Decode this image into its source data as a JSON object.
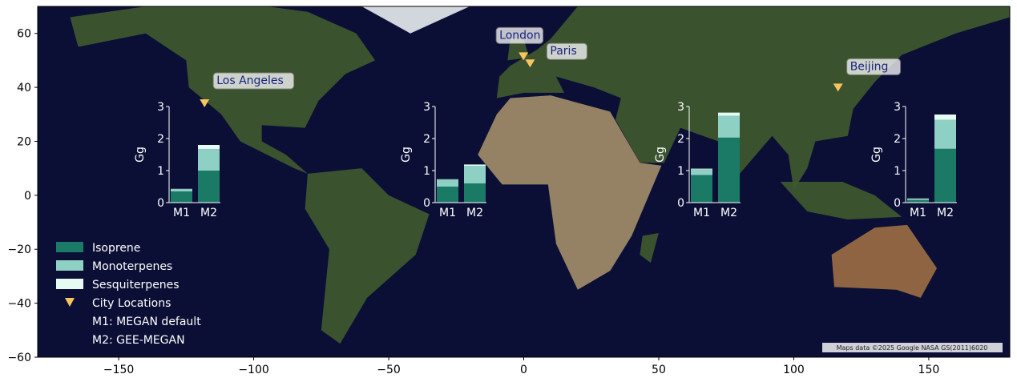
{
  "chart_data": {
    "type": "map-with-stacked-bar-insets",
    "xlim": [
      -180,
      180
    ],
    "ylim": [
      -60,
      70
    ],
    "x_ticks": [
      -150,
      -100,
      -50,
      0,
      50,
      100,
      150
    ],
    "y_ticks": [
      60,
      40,
      20,
      0,
      -20,
      -40,
      -60
    ],
    "x_tick_labels": [
      "−150",
      "−100",
      "−50",
      "0",
      "50",
      "100",
      "150"
    ],
    "y_tick_labels": [
      "60",
      "40",
      "20",
      "0",
      "−20",
      "−40",
      "−60"
    ],
    "attribution": "Maps data ©2025 Google NASA GS(2011)6020",
    "colors": {
      "ocean": "#0b0f35",
      "isoprene": "#1b7a66",
      "monoterpenes": "#8ed1c4",
      "sesquiterpenes": "#e6fbf2",
      "city": "#f7c45e",
      "label_text": "#1a237e"
    },
    "cities": [
      {
        "name": "Los Angeles",
        "lon": -118.2,
        "lat": 34.1
      },
      {
        "name": "London",
        "lon": -0.1,
        "lat": 51.5
      },
      {
        "name": "Paris",
        "lon": 2.35,
        "lat": 48.86
      },
      {
        "name": "Beijing",
        "lon": 116.4,
        "lat": 39.9
      }
    ],
    "inset_ylabel": "Gg",
    "inset_ylim": [
      0,
      3
    ],
    "inset_yticks": [
      "0",
      "1",
      "2",
      "3"
    ],
    "inset_categories": [
      "M1",
      "M2"
    ],
    "insets": [
      {
        "series": {
          "Isoprene": [
            0.35,
            1.0
          ],
          "Monoterpenes": [
            0.07,
            0.67
          ],
          "Sesquiterpenes": [
            0.01,
            0.13
          ]
        }
      },
      {
        "series": {
          "Isoprene": [
            0.5,
            0.6
          ],
          "Monoterpenes": [
            0.22,
            0.55
          ],
          "Sesquiterpenes": [
            0.01,
            0.04
          ]
        }
      },
      {
        "series": {
          "Isoprene": [
            0.86,
            2.03
          ],
          "Monoterpenes": [
            0.18,
            0.68
          ],
          "Sesquiterpenes": [
            0.02,
            0.1
          ]
        }
      },
      {
        "series": {
          "Isoprene": [
            0.08,
            1.68
          ],
          "Monoterpenes": [
            0.04,
            0.9
          ],
          "Sesquiterpenes": [
            0.01,
            0.17
          ]
        }
      }
    ],
    "legend": {
      "placement": "lower-left",
      "entries": [
        "Isoprene",
        "Monoterpenes",
        "Sesquiterpenes",
        "City Locations",
        "M1: MEGAN default",
        "M2: GEE-MEGAN"
      ]
    }
  }
}
